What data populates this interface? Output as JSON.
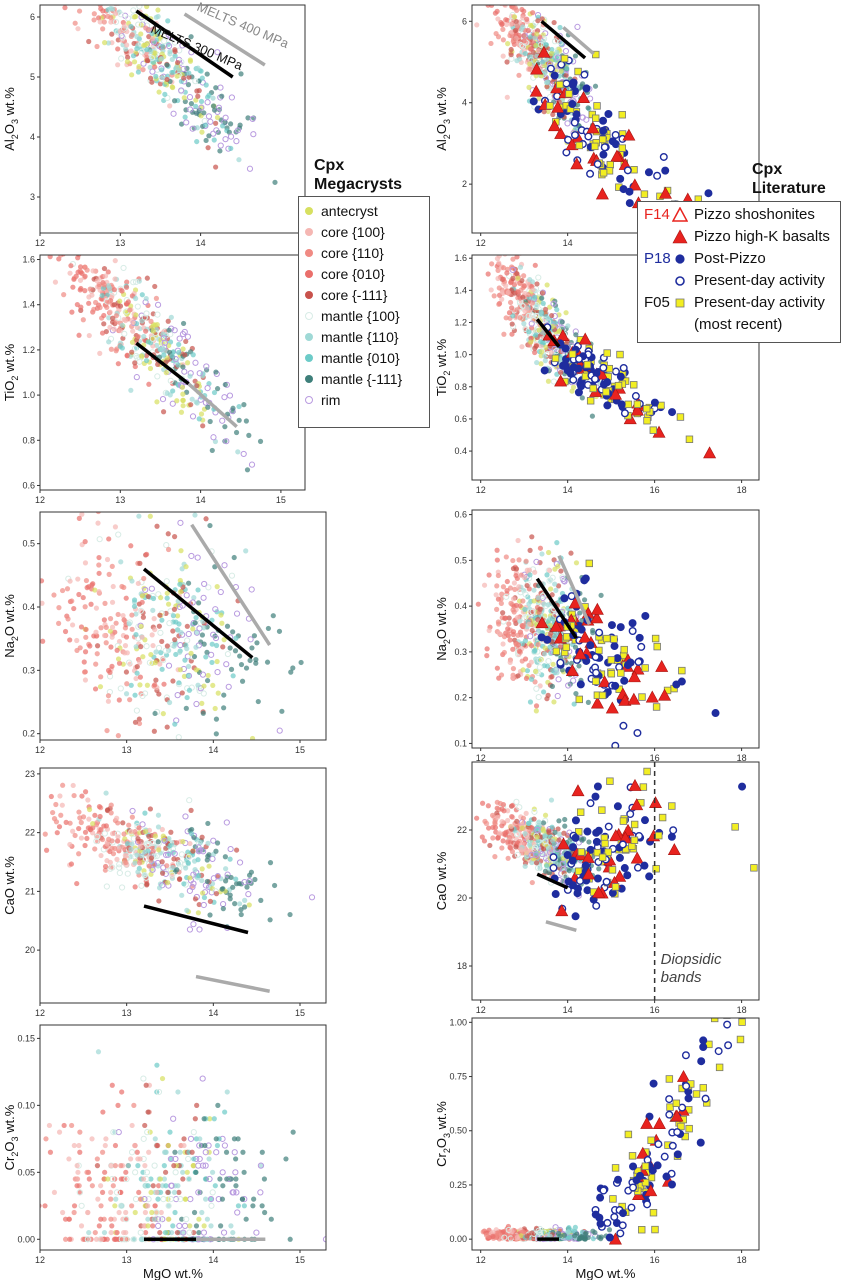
{
  "figure": {
    "left_column_title": [
      "Cpx",
      "Megacrysts"
    ],
    "right_column_title": [
      "Cpx",
      "Literature"
    ],
    "xlabel": "MgO wt.%",
    "colors": {
      "antecryst": "#d7e060",
      "core100": "#f5b7b3",
      "core110": "#f08a83",
      "core010": "#ea6f6b",
      "core111": "#c8524c",
      "mantle100": "#d8ece6",
      "mantle110": "#9fd9d6",
      "mantle010": "#6ccbc8",
      "mantle111": "#3e7f7a",
      "rim": "#b99be0",
      "melts300": "#000000",
      "melts400": "#aaaaaa",
      "f14": "#e8231f",
      "p18": "#1f2d9e",
      "f05": "#f2ee22"
    }
  },
  "legend_megacrysts": [
    {
      "key": "antecryst",
      "label": "antecryst"
    },
    {
      "key": "core100",
      "label": "core {100}"
    },
    {
      "key": "core110",
      "label": "core {110}"
    },
    {
      "key": "core010",
      "label": "core {010}"
    },
    {
      "key": "core111",
      "label": "core {-111}"
    },
    {
      "key": "mantle100",
      "label": "mantle {100}"
    },
    {
      "key": "mantle110",
      "label": "mantle {110}"
    },
    {
      "key": "mantle010",
      "label": "mantle {010}"
    },
    {
      "key": "mantle111",
      "label": "mantle {-111}"
    },
    {
      "key": "rim",
      "label": "rim"
    }
  ],
  "legend_literature": [
    {
      "code": "F14",
      "code_color": "f14",
      "symbol": "open-triangle",
      "label": "Pizzo shoshonites"
    },
    {
      "code": "",
      "code_color": "f14",
      "symbol": "filled-triangle",
      "label": "Pizzo high-K basalts"
    },
    {
      "code": "P18",
      "code_color": "p18",
      "symbol": "filled-circle",
      "label": "Post-Pizzo"
    },
    {
      "code": "",
      "code_color": "p18",
      "symbol": "open-circle",
      "label": "Present-day activity"
    },
    {
      "code": "F05",
      "code_color": "text",
      "symbol": "square",
      "label": "Present-day activity",
      "label2": "(most recent)"
    }
  ],
  "chart_data": [
    {
      "id": "al-mega",
      "type": "scatter",
      "ylabel_main": "Al",
      "ylabel_sub": "2",
      "ylabel_mid": "O",
      "ylabel_sub2": "3",
      "ylabel_end": " wt.%",
      "xlim": [
        12,
        15.3
      ],
      "ylim": [
        2.4,
        6.2
      ],
      "xticks": [
        12,
        13,
        14
      ],
      "yticks": [
        3,
        4,
        5,
        6
      ],
      "ytick_labels": [
        "3",
        "4",
        "5",
        "6"
      ],
      "trend": [
        13.35,
        5.5,
        -1.32
      ],
      "spread": 0.35,
      "melts": [
        {
          "name": "MELTS 300 MPa",
          "color": "melts300",
          "x": [
            13.2,
            14.4
          ],
          "y": [
            6.1,
            5.0
          ]
        },
        {
          "name": "MELTS 400 MPa",
          "color": "melts400",
          "x": [
            13.8,
            14.8
          ],
          "y": [
            6.05,
            5.2
          ]
        }
      ],
      "melts_labels": [
        "MELTS 300 MPa",
        "MELTS 400 MPa"
      ]
    },
    {
      "id": "al-lit",
      "type": "scatter",
      "ylabel_main": "Al",
      "ylabel_sub": "2",
      "ylabel_mid": "O",
      "ylabel_sub2": "3",
      "ylabel_end": " wt.%",
      "xlim": [
        11.8,
        18.4
      ],
      "ylim": [
        0.8,
        6.4
      ],
      "xticks": [
        12,
        14,
        16,
        18
      ],
      "yticks": [
        2,
        4,
        6
      ],
      "ytick_labels": [
        "2",
        "4",
        "6"
      ],
      "trend": [
        13.35,
        5.2,
        -1.1
      ],
      "spread": 0.5,
      "melts": [
        {
          "name": "MELTS 300 MPa",
          "color": "melts300",
          "x": [
            13.4,
            14.4
          ],
          "y": [
            6.0,
            5.1
          ]
        },
        {
          "name": "MELTS 400 MPa",
          "color": "melts400",
          "x": [
            13.9,
            14.6
          ],
          "y": [
            5.85,
            5.2
          ]
        }
      ],
      "lit_trend": [
        13.5,
        4.4,
        -0.95,
        0.55
      ]
    },
    {
      "id": "ti-mega",
      "type": "scatter",
      "ylabel_main": "TiO",
      "ylabel_sub": "2",
      "ylabel_mid": "",
      "ylabel_sub2": "",
      "ylabel_end": " wt.%",
      "xlim": [
        12,
        15.3
      ],
      "ylim": [
        0.58,
        1.62
      ],
      "xticks": [
        12,
        13,
        14,
        15
      ],
      "yticks": [
        0.6,
        0.8,
        1.0,
        1.2,
        1.4,
        1.6
      ],
      "ytick_labels": [
        "0.6",
        "0.8",
        "1.0",
        "1.2",
        "1.4",
        "1.6"
      ],
      "trend": [
        13.35,
        1.25,
        -0.33
      ],
      "spread": 0.1,
      "melts": [
        {
          "name": "MELTS 300 MPa",
          "color": "melts300",
          "x": [
            13.2,
            13.85
          ],
          "y": [
            1.23,
            1.05
          ]
        },
        {
          "name": "MELTS 400 MPa",
          "color": "melts400",
          "x": [
            13.85,
            14.45
          ],
          "y": [
            1.05,
            0.86
          ]
        }
      ]
    },
    {
      "id": "ti-lit",
      "type": "scatter",
      "ylabel_main": "TiO",
      "ylabel_sub": "2",
      "ylabel_mid": "",
      "ylabel_sub2": "",
      "ylabel_end": " wt.%",
      "xlim": [
        11.8,
        18.4
      ],
      "ylim": [
        0.22,
        1.62
      ],
      "xticks": [
        12,
        14,
        16,
        18
      ],
      "yticks": [
        0.4,
        0.6,
        0.8,
        1.0,
        1.2,
        1.4,
        1.6
      ],
      "ytick_labels": [
        "0.4",
        "0.6",
        "0.8",
        "1.0",
        "1.2",
        "1.4",
        "1.6"
      ],
      "trend": [
        13.35,
        1.2,
        -0.3
      ],
      "spread": 0.12,
      "melts": [
        {
          "name": "MELTS 300 MPa",
          "color": "melts300",
          "x": [
            13.3,
            13.8
          ],
          "y": [
            1.22,
            1.05
          ]
        }
      ],
      "lit_trend": [
        13.6,
        1.05,
        -0.17,
        0.08
      ]
    },
    {
      "id": "na-mega",
      "type": "scatter",
      "ylabel_main": "Na",
      "ylabel_sub": "2",
      "ylabel_mid": "O",
      "ylabel_sub2": "",
      "ylabel_end": " wt.%",
      "xlim": [
        12,
        15.3
      ],
      "ylim": [
        0.19,
        0.55
      ],
      "xticks": [
        12,
        13,
        14,
        15
      ],
      "yticks": [
        0.2,
        0.3,
        0.4,
        0.5
      ],
      "ytick_labels": [
        "0.2",
        "0.3",
        "0.4",
        "0.5"
      ],
      "trend": [
        13.35,
        0.36,
        -0.02
      ],
      "spread": 0.07,
      "melts": [
        {
          "name": "MELTS 300 MPa",
          "color": "melts300",
          "x": [
            13.2,
            14.45
          ],
          "y": [
            0.46,
            0.32
          ]
        },
        {
          "name": "MELTS 400 MPa",
          "color": "melts400",
          "x": [
            13.75,
            14.65
          ],
          "y": [
            0.53,
            0.34
          ]
        }
      ]
    },
    {
      "id": "na-lit",
      "type": "scatter",
      "ylabel_main": "Na",
      "ylabel_sub": "2",
      "ylabel_mid": "O",
      "ylabel_sub2": "",
      "ylabel_end": " wt.%",
      "xlim": [
        11.8,
        18.4
      ],
      "ylim": [
        0.09,
        0.61
      ],
      "xticks": [
        12,
        14,
        16,
        18
      ],
      "yticks": [
        0.1,
        0.2,
        0.3,
        0.4,
        0.5,
        0.6
      ],
      "ytick_labels": [
        "0.1",
        "0.2",
        "0.3",
        "0.4",
        "0.5",
        "0.6"
      ],
      "trend": [
        13.35,
        0.36,
        -0.02
      ],
      "spread": 0.07,
      "melts": [
        {
          "name": "MELTS 300 MPa",
          "color": "melts300",
          "x": [
            13.3,
            14.2
          ],
          "y": [
            0.46,
            0.33
          ]
        },
        {
          "name": "MELTS 400 MPa",
          "color": "melts400",
          "x": [
            13.8,
            14.5
          ],
          "y": [
            0.51,
            0.36
          ]
        }
      ],
      "lit_trend": [
        13.6,
        0.35,
        -0.05,
        0.06
      ]
    },
    {
      "id": "ca-mega",
      "type": "scatter",
      "ylabel_main": "CaO",
      "ylabel_sub": "",
      "ylabel_mid": "",
      "ylabel_sub2": "",
      "ylabel_end": " wt.%",
      "xlim": [
        12,
        15.3
      ],
      "ylim": [
        19.1,
        23.1
      ],
      "xticks": [
        12,
        13,
        14,
        15
      ],
      "yticks": [
        20,
        21,
        22,
        23
      ],
      "ytick_labels": [
        "20",
        "21",
        "22",
        "23"
      ],
      "trend": [
        13.35,
        21.6,
        -0.55
      ],
      "spread": 0.35,
      "melts": [
        {
          "name": "MELTS 300 MPa",
          "color": "melts300",
          "x": [
            13.2,
            14.4
          ],
          "y": [
            20.75,
            20.3
          ]
        },
        {
          "name": "MELTS 400 MPa",
          "color": "melts400",
          "x": [
            13.8,
            14.65
          ],
          "y": [
            19.55,
            19.3
          ]
        }
      ]
    },
    {
      "id": "ca-lit",
      "type": "scatter",
      "ylabel_main": "CaO",
      "ylabel_sub": "",
      "ylabel_mid": "",
      "ylabel_sub2": "",
      "ylabel_end": " wt.%",
      "xlim": [
        11.8,
        18.4
      ],
      "ylim": [
        17.0,
        24.0
      ],
      "xticks": [
        12,
        14,
        16,
        18
      ],
      "yticks": [
        18,
        20,
        22
      ],
      "ytick_labels": [
        "18",
        "20",
        "22"
      ],
      "trend": [
        13.35,
        21.6,
        -0.55
      ],
      "spread": 0.4,
      "melts": [
        {
          "name": "MELTS 300 MPa",
          "color": "melts300",
          "x": [
            13.3,
            14.0
          ],
          "y": [
            20.7,
            20.3
          ]
        },
        {
          "name": "MELTS 400 MPa",
          "color": "melts400",
          "x": [
            13.5,
            14.2
          ],
          "y": [
            19.3,
            19.05
          ]
        }
      ],
      "lit_trend": [
        13.8,
        20.7,
        0.6,
        0.9
      ],
      "vline": 16,
      "vline_label": [
        "Diopsidic",
        "bands"
      ]
    },
    {
      "id": "cr-mega",
      "type": "scatter",
      "ylabel_main": "Cr",
      "ylabel_sub": "2",
      "ylabel_mid": "O",
      "ylabel_sub2": "3",
      "ylabel_end": " wt.%",
      "xlim": [
        12,
        15.3
      ],
      "ylim": [
        -0.008,
        0.16
      ],
      "xticks": [
        12,
        13,
        14,
        15
      ],
      "yticks": [
        0.0,
        0.05,
        0.1,
        0.15
      ],
      "ytick_labels": [
        "0.00",
        "0.05",
        "0.10",
        "0.15"
      ],
      "trend": [
        13.35,
        0.03,
        0.0
      ],
      "spread": 0.035,
      "discrete": 0.005,
      "melts": [
        {
          "name": "MELTS 300 MPa",
          "color": "melts300",
          "x": [
            13.2,
            13.8
          ],
          "y": [
            0.0,
            0.0
          ]
        },
        {
          "name": "MELTS 400 MPa",
          "color": "melts400",
          "x": [
            13.8,
            14.6
          ],
          "y": [
            0.0,
            0.0
          ]
        }
      ],
      "show_xlabel": true
    },
    {
      "id": "cr-lit",
      "type": "scatter",
      "ylabel_main": "Cr",
      "ylabel_sub": "2",
      "ylabel_mid": "O",
      "ylabel_sub2": "3",
      "ylabel_end": " wt.%",
      "xlim": [
        11.8,
        18.4
      ],
      "ylim": [
        -0.05,
        1.02
      ],
      "xticks": [
        12,
        14,
        16,
        18
      ],
      "yticks": [
        0.0,
        0.25,
        0.5,
        0.75,
        1.0
      ],
      "ytick_labels": [
        "0.00",
        "0.25",
        "0.50",
        "0.75",
        "1.00"
      ],
      "trend": [
        13.35,
        0.02,
        0.0
      ],
      "spread": 0.02,
      "melts": [
        {
          "name": "MELTS 300 MPa",
          "color": "melts300",
          "x": [
            13.3,
            13.8
          ],
          "y": [
            0.0,
            0.0
          ]
        }
      ],
      "lit_trend": [
        14.8,
        0.1,
        0.12,
        0.12
      ],
      "cr_lit": true,
      "show_xlabel": true
    }
  ]
}
